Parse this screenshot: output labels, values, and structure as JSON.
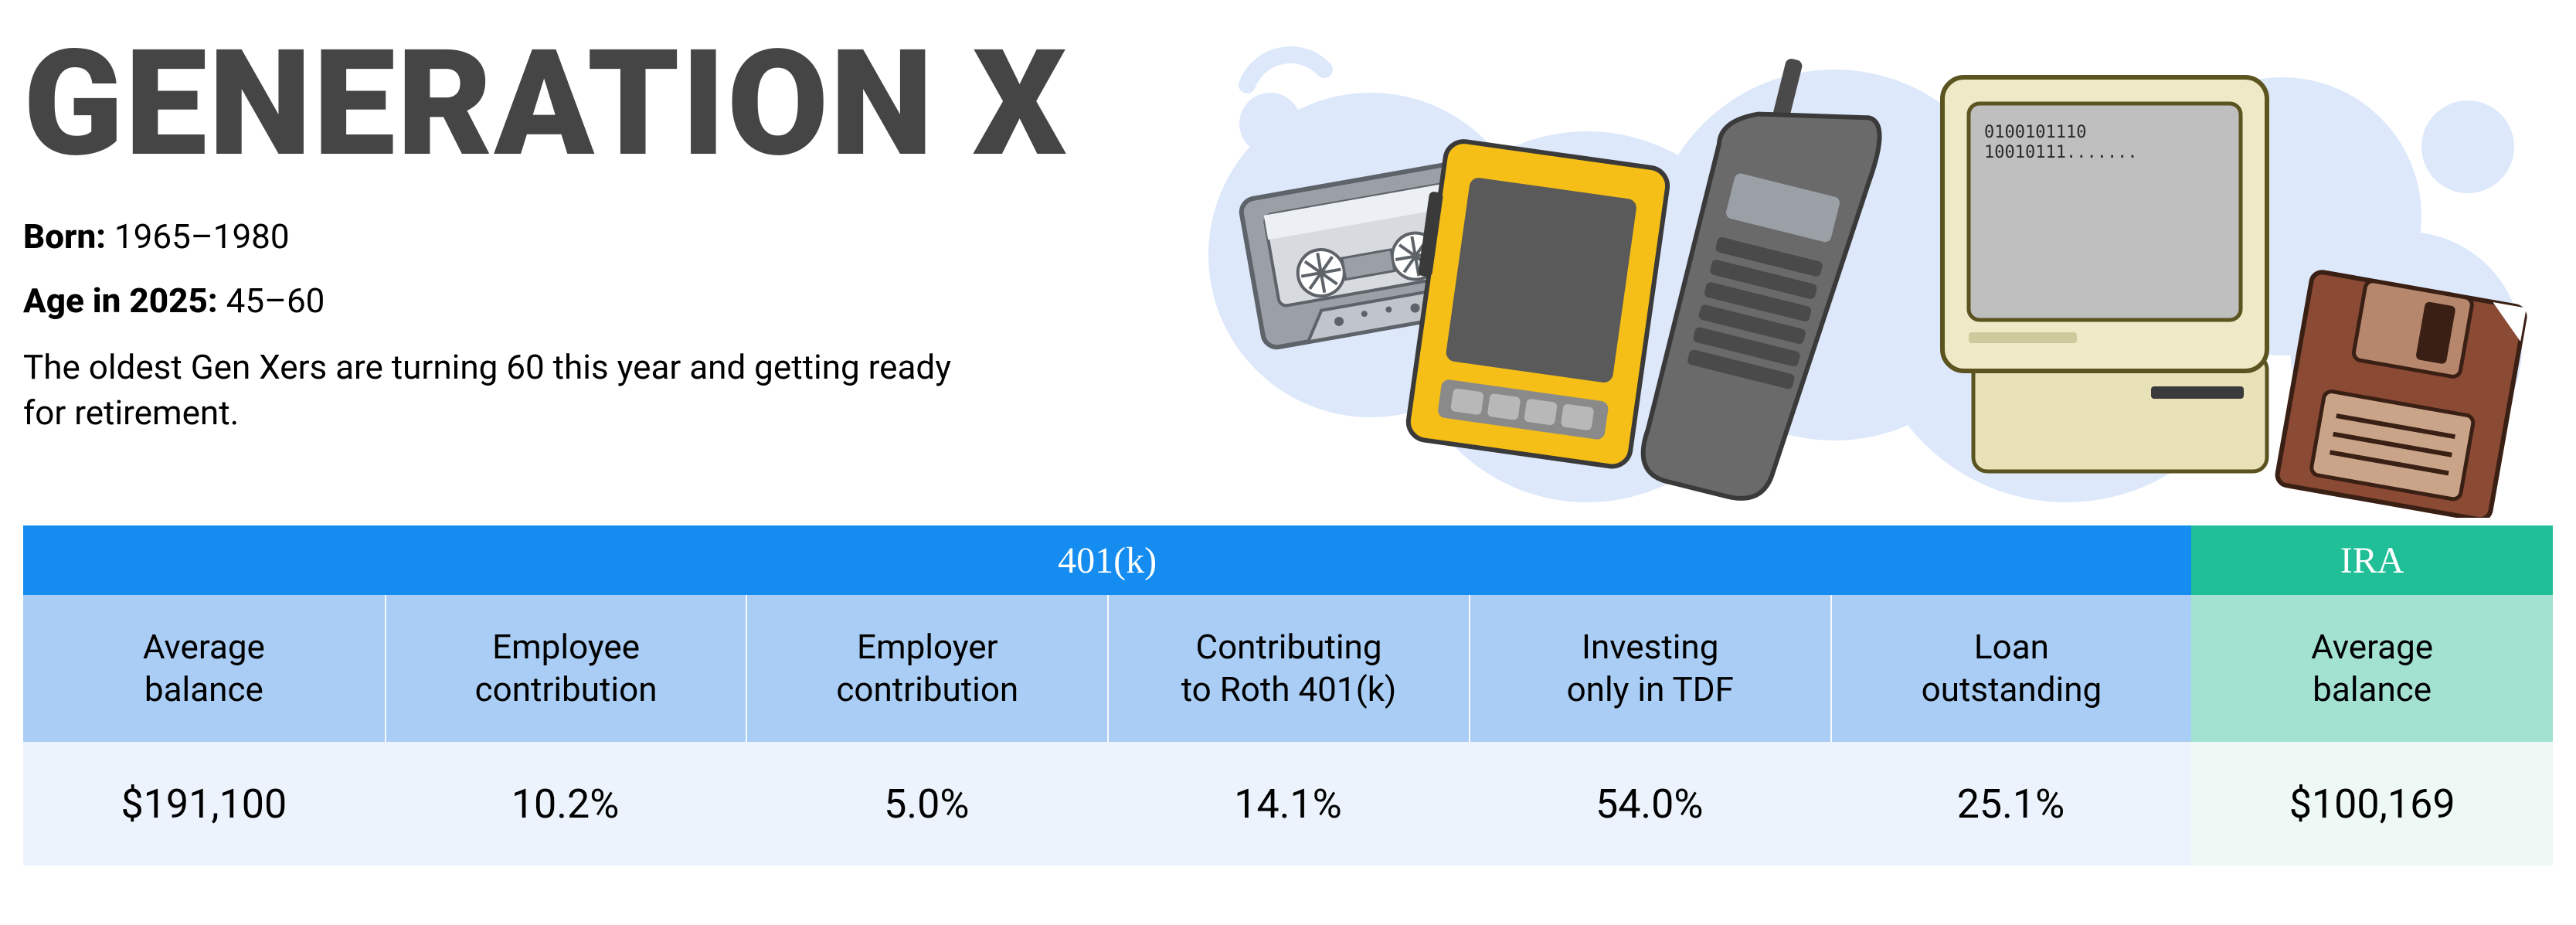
{
  "title": "GENERATION X",
  "title_color": "#454545",
  "born_label": "Born:",
  "born_value": "1965–1980",
  "age_label": "Age in 2025:",
  "age_value": "45–60",
  "description": "The oldest Gen Xers are turning 60 this year and getting ready for retirement.",
  "meta_fontsize": 44,
  "title_fontsize": 190,
  "illustration": {
    "background_bubbles_color": "#dde8fb",
    "items": [
      "cassette-tape",
      "walkman",
      "brick-cellphone",
      "retro-computer",
      "floppy-disk"
    ],
    "computer_screen_text": [
      "0100101110",
      "10010111......."
    ]
  },
  "table": {
    "sections": [
      {
        "key": "401k",
        "header_label": "401(k)",
        "header_bg": "#148cf0",
        "col_header_bg": "#a9cdf4",
        "col_value_bg": "#edf3fc",
        "columns": [
          {
            "label": "Average\nbalance",
            "value": "$191,100"
          },
          {
            "label": "Employee\ncontribution",
            "value": "10.2%"
          },
          {
            "label": "Employer\ncontribution",
            "value": "5.0%"
          },
          {
            "label": "Contributing\nto Roth 401(k)",
            "value": "14.1%"
          },
          {
            "label": "Investing\nonly in TDF",
            "value": "54.0%"
          },
          {
            "label": "Loan\noutstanding",
            "value": "25.1%"
          }
        ]
      },
      {
        "key": "ira",
        "header_label": "IRA",
        "header_bg": "#20bf98",
        "col_header_bg": "#a3e2d1",
        "col_value_bg": "#eef9f5",
        "columns": [
          {
            "label": "Average\nbalance",
            "value": "$100,169"
          }
        ]
      }
    ],
    "header_fontsize": 48,
    "col_header_fontsize": 44,
    "col_value_fontsize": 52
  }
}
